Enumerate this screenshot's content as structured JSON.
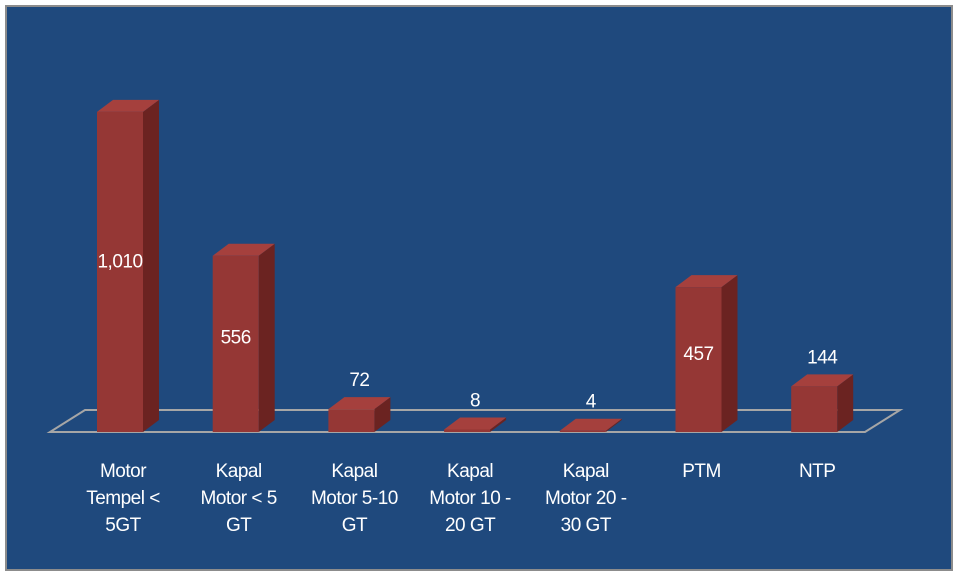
{
  "chart_data": {
    "type": "bar3d",
    "categories": [
      "Motor Tempel < 5GT",
      "Kapal Motor < 5 GT",
      "Kapal Motor 5-10 GT",
      "Kapal Motor 10 - 20 GT",
      "Kapal Motor 20 - 30 GT",
      "PTM",
      "NTP"
    ],
    "values": [
      1010,
      556,
      72,
      8,
      4,
      457,
      144
    ],
    "value_labels": [
      "1,010",
      "556",
      "72",
      "8",
      "4",
      "457",
      "144"
    ],
    "color": "#953735"
  }
}
